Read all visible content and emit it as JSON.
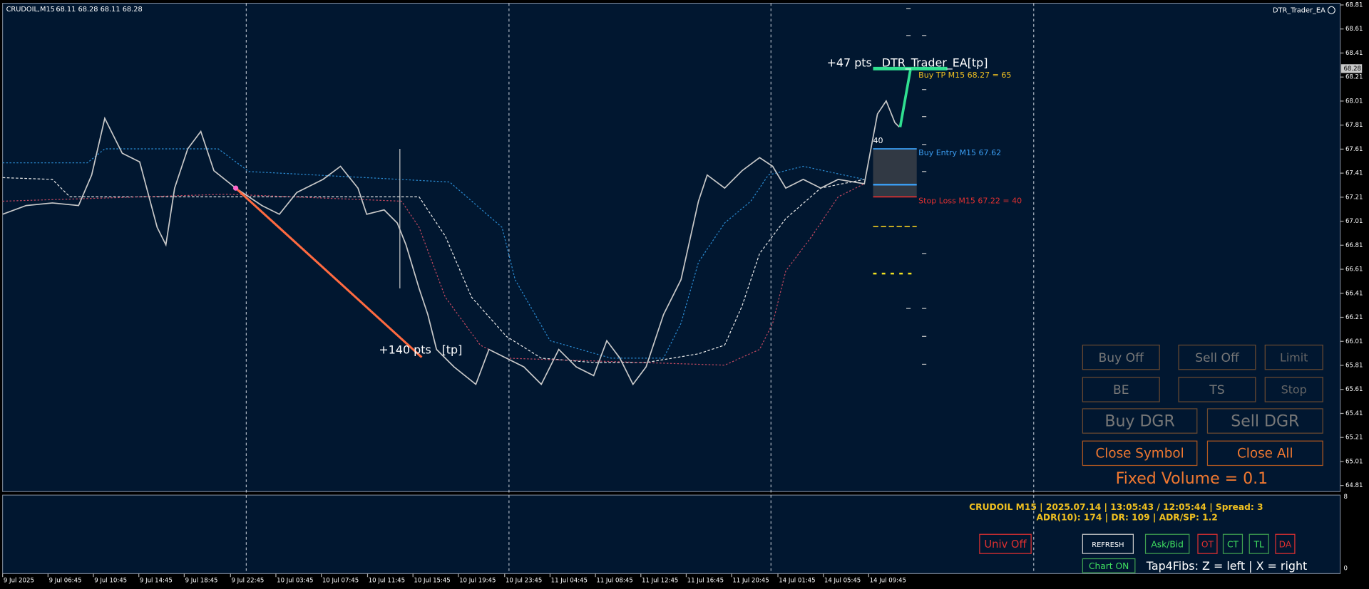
{
  "chart_header": {
    "symbol": "CRUDOIL,M15",
    "ohlc": "68.11 68.28 68.11 68.28"
  },
  "ea_name": "DTR_Trader_EA",
  "price_axis": [
    "68.81",
    "68.61",
    "68.41",
    "68.21",
    "68.01",
    "67.81",
    "67.61",
    "67.41",
    "67.21",
    "67.01",
    "66.81",
    "66.61",
    "66.41",
    "66.21",
    "66.01",
    "65.81",
    "65.61",
    "65.41",
    "65.21",
    "65.01",
    "64.81"
  ],
  "current_price": "68.28",
  "sub_axis": [
    "8",
    "0"
  ],
  "time_axis": [
    "9 Jul 2025",
    "9 Jul 06:45",
    "9 Jul 10:45",
    "9 Jul 14:45",
    "9 Jul 18:45",
    "9 Jul 22:45",
    "10 Jul 03:45",
    "10 Jul 07:45",
    "10 Jul 11:45",
    "10 Jul 15:45",
    "10 Jul 19:45",
    "10 Jul 23:45",
    "11 Jul 04:45",
    "11 Jul 08:45",
    "11 Jul 12:45",
    "11 Jul 16:45",
    "11 Jul 20:45",
    "14 Jul 01:45",
    "14 Jul 05:45",
    "14 Jul 09:45"
  ],
  "annotations": {
    "tp_pts_1": "+47 pts",
    "tp_tag_1": "DTR_Trader_EA[tp]",
    "buy_tp": "Buy TP M15 68.27 = 65",
    "buy_entry": "Buy Entry M15 67.62",
    "stop_loss": "Stop Loss M15 67.22 = 40",
    "sl_pts": "40",
    "tp_pts_2": "+140 pts",
    "tp_tag_2": "[tp]"
  },
  "panel_buttons": [
    "Buy Off",
    "Sell Off",
    "Limit",
    "BE",
    "TS",
    "Stop",
    "Buy DGR",
    "Sell DGR",
    "Close Symbol",
    "Close All"
  ],
  "fixed_volume": "Fixed Volume = 0.1",
  "info": {
    "line1": "CRUDOIL M15 | 2025.07.14 | 13:05:43 / 12:05:44 | Spread: 3",
    "line2": "ADR(10): 174 | DR: 109 | ADR/SP: 1.2"
  },
  "small_buttons": [
    "Univ Off",
    "REFRESH",
    "Ask/Bid",
    "OT",
    "CT",
    "TL",
    "DA",
    "Chart ON"
  ],
  "hotkeys": "Tap4Fibs: Z = left | X = right"
}
